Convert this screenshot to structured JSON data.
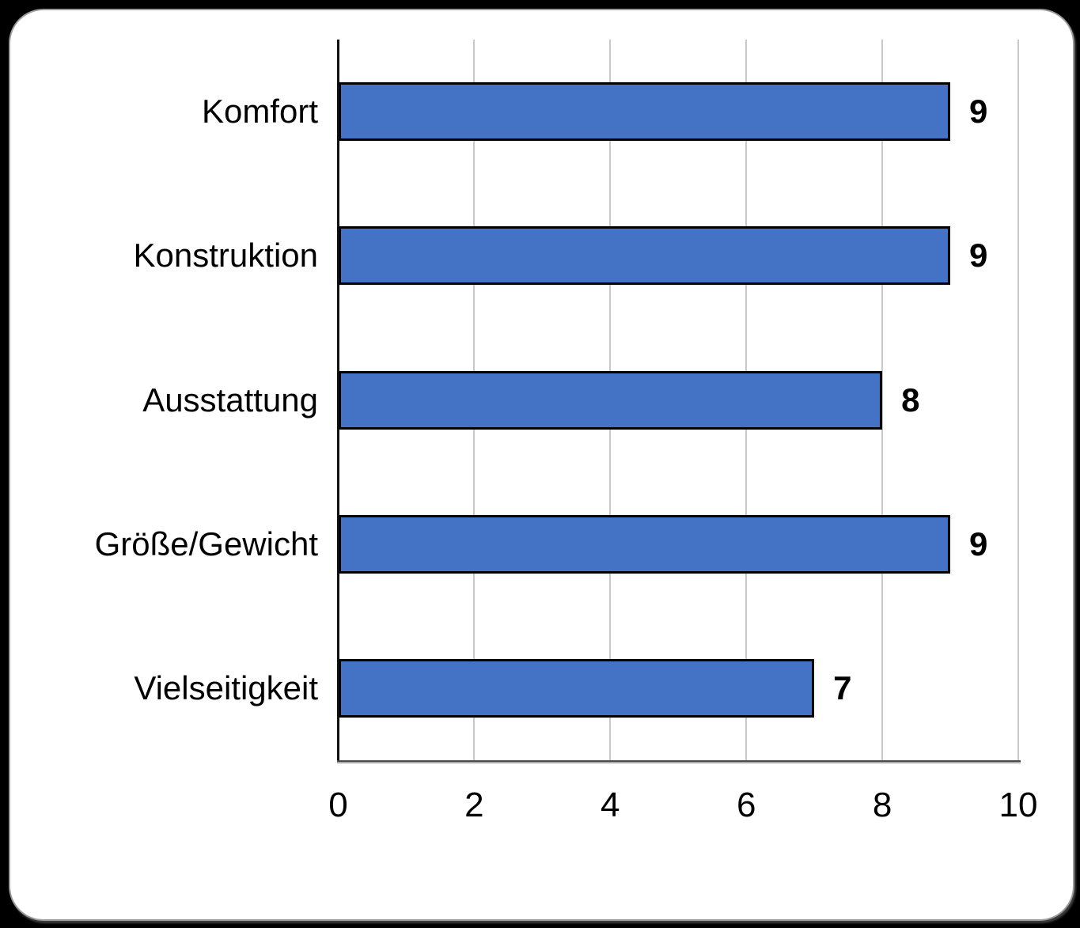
{
  "page": {
    "background": "#000000",
    "card_background": "#FFFFFF",
    "card_border_color": "#9B9B9B"
  },
  "chart_data": {
    "type": "bar",
    "orientation": "horizontal",
    "title": "",
    "categories": [
      "Komfort",
      "Konstruktion",
      "Ausstattung",
      "Größe/Gewicht",
      "Vielseitigkeit"
    ],
    "values": [
      9,
      9,
      8,
      9,
      7
    ],
    "data_labels": [
      "9",
      "9",
      "8",
      "9",
      "7"
    ],
    "xlim": [
      0,
      10
    ],
    "x_ticks": [
      "0",
      "2",
      "4",
      "6",
      "8",
      "10"
    ],
    "grid": true,
    "legend": "none",
    "bar_fill": "#4472C4",
    "bar_border": "#000000",
    "gridline_color": "#C8C8C8",
    "axis_line_color": "#404040",
    "text_color": "#000000"
  }
}
